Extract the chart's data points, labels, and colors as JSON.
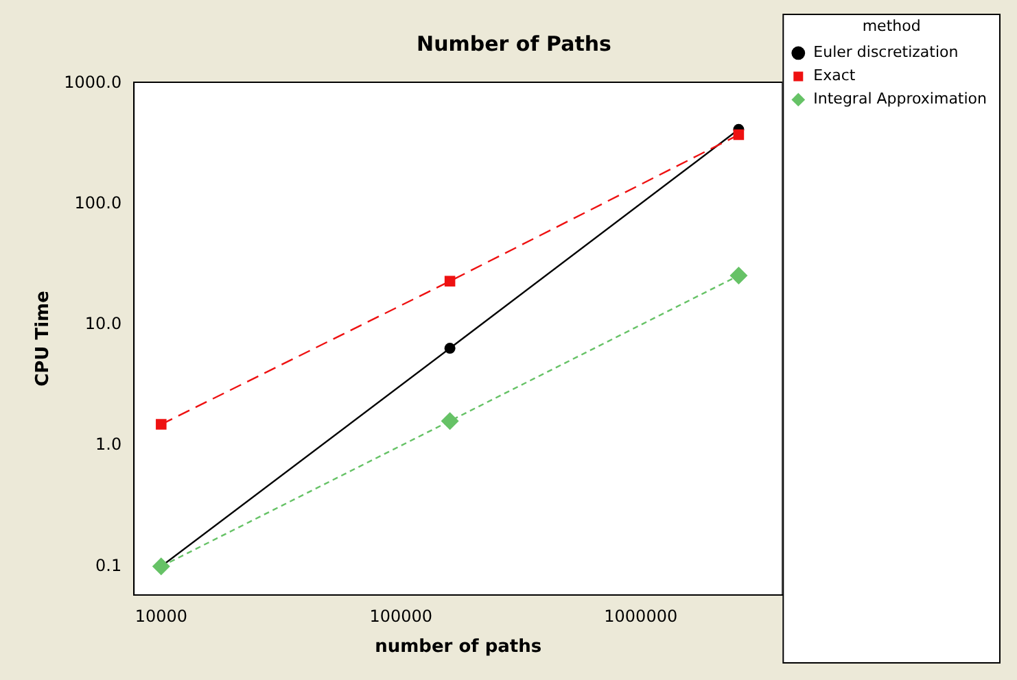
{
  "chart_data": {
    "type": "line",
    "title": "Number of Paths",
    "xlabel": "number of paths",
    "ylabel": "CPU Time",
    "legend_title": "method",
    "legend": "top right",
    "log": "xy",
    "grid": false,
    "x": [
      10000,
      160000,
      2560000
    ],
    "xlim": [
      7700,
      3900000
    ],
    "xticks": [
      10000,
      100000,
      1000000
    ],
    "ylim": [
      0.058,
      1020
    ],
    "yticks": [
      {
        "value": 0.1,
        "label": "0.1"
      },
      {
        "value": 1,
        "label": "1.0"
      },
      {
        "value": 10,
        "label": "10.0"
      },
      {
        "value": 100,
        "label": "100.0"
      },
      {
        "value": 1000,
        "label": "1000.0"
      }
    ],
    "series": [
      {
        "name": "Euler discretization",
        "color": "#000000",
        "values": [
          0.1,
          6.4,
          415
        ],
        "marker": "circle",
        "line_style": "solid"
      },
      {
        "name": "Exact",
        "color": "#ee1111",
        "values": [
          1.5,
          23,
          375
        ],
        "marker": "square",
        "line_style": "dashed"
      },
      {
        "name": "Integral Approximation",
        "color": "#66c266",
        "values": [
          0.1,
          1.6,
          25.6
        ],
        "marker": "diamond",
        "line_style": "dotted"
      }
    ]
  }
}
